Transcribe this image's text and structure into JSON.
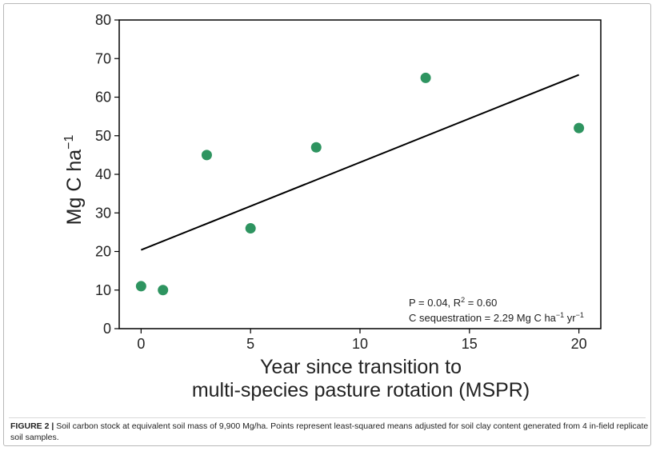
{
  "figure": {
    "caption_label": "FIGURE 2 |",
    "caption_text": "Soil carbon stock at equivalent soil mass of 9,900 Mg/ha. Points represent least-squared means adjusted for soil clay content generated from 4 in-field replicate soil samples."
  },
  "chart_data": {
    "type": "scatter",
    "title": "",
    "xlabel_line1": "Year since transition to",
    "xlabel_line2": "multi-species pasture rotation (MSPR)",
    "ylabel_main": "Mg C ha",
    "ylabel_sup": "−1",
    "xlim": [
      -1,
      21
    ],
    "ylim": [
      0,
      80
    ],
    "xticks": [
      0,
      5,
      10,
      15,
      20
    ],
    "yticks": [
      0,
      10,
      20,
      30,
      40,
      50,
      60,
      70,
      80
    ],
    "grid": false,
    "point_color": "#2e9460",
    "line_color": "#000000",
    "points": [
      {
        "x": 0,
        "y": 11
      },
      {
        "x": 1,
        "y": 10
      },
      {
        "x": 3,
        "y": 45
      },
      {
        "x": 5,
        "y": 26
      },
      {
        "x": 8,
        "y": 47
      },
      {
        "x": 13,
        "y": 65
      },
      {
        "x": 20,
        "y": 52
      }
    ],
    "trendline": {
      "x": [
        0,
        20
      ],
      "y": [
        20.4,
        65.8
      ]
    },
    "annotation": {
      "stats_a": "P = 0.04, R",
      "stats_sup": "2",
      "stats_b": " = 0.60",
      "seq_a": "C sequestration = 2.29 Mg C ha",
      "seq_sup1": "−1",
      "seq_b": " yr",
      "seq_sup2": "−1"
    }
  }
}
